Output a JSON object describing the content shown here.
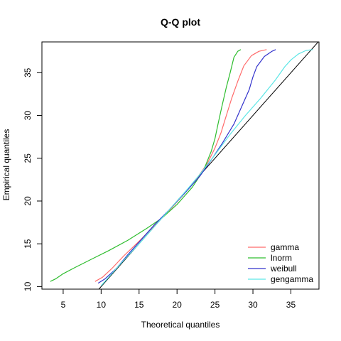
{
  "chart_data": {
    "type": "line",
    "title": "Q-Q plot",
    "xlabel": "Theoretical quantiles",
    "ylabel": "Empirical quantiles",
    "xlim": [
      2.2,
      38.7
    ],
    "ylim": [
      9.7,
      38.6
    ],
    "x_ticks": [
      5,
      10,
      15,
      20,
      25,
      30,
      35
    ],
    "y_ticks": [
      10,
      15,
      20,
      25,
      30,
      35
    ],
    "grid": false,
    "legend_position": "bottom-right",
    "reference_line": {
      "from": [
        9.6,
        9.6
      ],
      "to": [
        38.7,
        38.7
      ],
      "color": "#000000"
    },
    "series": [
      {
        "name": "gamma",
        "color": "#ff6b6b",
        "points": [
          [
            9.2,
            10.6
          ],
          [
            10.2,
            11.1
          ],
          [
            11.4,
            12.1
          ],
          [
            13.0,
            13.6
          ],
          [
            15.0,
            15.3
          ],
          [
            17.0,
            17.1
          ],
          [
            19.0,
            18.9
          ],
          [
            21.0,
            20.9
          ],
          [
            22.5,
            22.5
          ],
          [
            24.0,
            24.4
          ],
          [
            25.0,
            26.2
          ],
          [
            25.8,
            28.0
          ],
          [
            26.5,
            30.0
          ],
          [
            27.2,
            32.0
          ],
          [
            28.0,
            34.0
          ],
          [
            28.8,
            35.8
          ],
          [
            29.8,
            37.0
          ],
          [
            30.8,
            37.5
          ],
          [
            31.8,
            37.7
          ]
        ]
      },
      {
        "name": "lnorm",
        "color": "#2ebd2e",
        "points": [
          [
            3.3,
            10.6
          ],
          [
            4.0,
            10.9
          ],
          [
            5.0,
            11.5
          ],
          [
            6.5,
            12.2
          ],
          [
            8.5,
            13.1
          ],
          [
            11.0,
            14.2
          ],
          [
            13.5,
            15.4
          ],
          [
            16.0,
            16.8
          ],
          [
            18.0,
            18.0
          ],
          [
            20.0,
            19.6
          ],
          [
            22.0,
            21.6
          ],
          [
            23.5,
            23.6
          ],
          [
            24.5,
            25.8
          ],
          [
            25.0,
            27.3
          ],
          [
            25.4,
            29.0
          ],
          [
            25.9,
            31.0
          ],
          [
            26.5,
            33.3
          ],
          [
            27.0,
            35.0
          ],
          [
            27.5,
            36.8
          ],
          [
            28.0,
            37.5
          ],
          [
            28.4,
            37.7
          ]
        ]
      },
      {
        "name": "weibull",
        "color": "#3333cc",
        "points": [
          [
            9.6,
            10.4
          ],
          [
            10.5,
            10.9
          ],
          [
            12.0,
            12.1
          ],
          [
            13.5,
            13.7
          ],
          [
            15.0,
            15.2
          ],
          [
            17.0,
            17.2
          ],
          [
            19.0,
            19.0
          ],
          [
            21.0,
            20.9
          ],
          [
            23.0,
            22.9
          ],
          [
            24.5,
            24.8
          ],
          [
            26.0,
            26.8
          ],
          [
            27.5,
            29.0
          ],
          [
            28.5,
            31.0
          ],
          [
            29.5,
            33.0
          ],
          [
            30.0,
            34.5
          ],
          [
            30.5,
            35.7
          ],
          [
            31.5,
            36.9
          ],
          [
            32.5,
            37.5
          ],
          [
            33.0,
            37.7
          ]
        ]
      },
      {
        "name": "gengamma",
        "color": "#5ce6e6",
        "points": [
          [
            10.0,
            10.1
          ],
          [
            11.5,
            11.6
          ],
          [
            13.0,
            13.1
          ],
          [
            15.0,
            15.0
          ],
          [
            17.0,
            17.0
          ],
          [
            19.0,
            19.0
          ],
          [
            21.0,
            21.0
          ],
          [
            23.0,
            23.1
          ],
          [
            25.0,
            25.4
          ],
          [
            27.0,
            27.8
          ],
          [
            29.0,
            30.0
          ],
          [
            31.0,
            32.0
          ],
          [
            33.0,
            34.2
          ],
          [
            34.2,
            35.7
          ],
          [
            35.0,
            36.5
          ],
          [
            36.0,
            37.2
          ],
          [
            37.0,
            37.6
          ],
          [
            37.9,
            37.7
          ]
        ]
      }
    ]
  }
}
